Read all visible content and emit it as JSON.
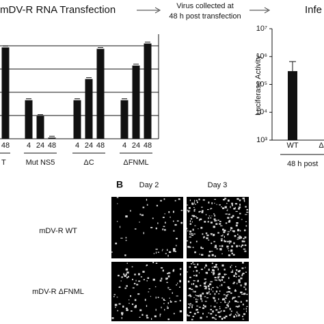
{
  "header": {
    "step1": "mDV-R RNA Transfection",
    "step2_line1": "Virus collected at",
    "step2_line2": "48 h post transfection",
    "step3": "Infe"
  },
  "chart_data": [
    {
      "type": "bar",
      "groups": [
        {
          "name": "T",
          "categories": [
            "48"
          ],
          "values": [
            3.93
          ]
        },
        {
          "name": "Mut NS5",
          "categories": [
            "4",
            "24",
            "48"
          ],
          "values": [
            1.66,
            0.98,
            0.05
          ]
        },
        {
          "name": "ΔC",
          "categories": [
            "4",
            "24",
            "48"
          ],
          "values": [
            1.66,
            2.57,
            3.87
          ]
        },
        {
          "name": "ΔFNML",
          "categories": [
            "4",
            "24",
            "48"
          ],
          "values": [
            1.66,
            3.15,
            4.1
          ]
        }
      ],
      "color": "#111111",
      "ylim": [
        0,
        4.5
      ],
      "yticks": [
        1,
        2,
        3,
        4
      ],
      "grid": true
    },
    {
      "type": "bar",
      "log_scale": true,
      "y_label": "Luciferase Activity",
      "categories": [
        "WT",
        "Δ"
      ],
      "values": [
        300000,
        null
      ],
      "errors": [
        360000,
        null
      ],
      "group_label": "48 h post",
      "color": "#111111",
      "ylim": [
        1000,
        10000000
      ],
      "yticks": [
        {
          "value": 1000,
          "label": "10³"
        },
        {
          "value": 10000,
          "label": "10⁴"
        },
        {
          "value": 100000,
          "label": "10⁵"
        },
        {
          "value": 1000000,
          "label": "10⁶"
        },
        {
          "value": 10000000,
          "label": "10⁷"
        }
      ]
    }
  ],
  "panel_b": {
    "label": "B",
    "columns": [
      "Day 2",
      "Day 3"
    ],
    "rows": [
      "mDV-R WT",
      "mDV-R ΔFNML"
    ]
  }
}
